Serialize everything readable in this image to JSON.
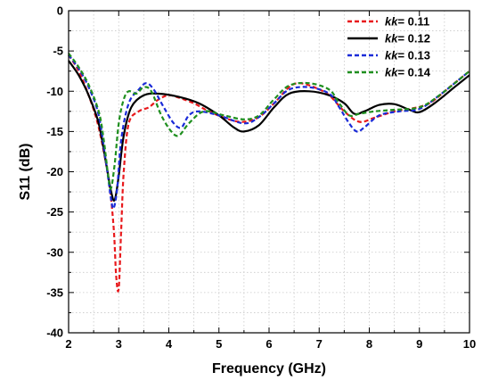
{
  "chart_data": {
    "type": "line",
    "xlabel": "Frequency (GHz)",
    "ylabel": "S11 (dB)",
    "xlim": [
      2,
      10
    ],
    "ylim": [
      -40,
      0
    ],
    "xticks": [
      "2",
      "3",
      "4",
      "5",
      "6",
      "7",
      "8",
      "9",
      "10"
    ],
    "yticks": [
      "0",
      "-5",
      "-10",
      "-15",
      "-20",
      "-25",
      "-30",
      "-35",
      "-40"
    ],
    "grid": true,
    "legend": "top-right",
    "legend_prefix": "kk",
    "series": [
      {
        "name": "= 0.11",
        "color": "#e8191c",
        "dash": "dashed",
        "points": [
          [
            2.0,
            -5.5
          ],
          [
            2.2,
            -7.5
          ],
          [
            2.4,
            -10.5
          ],
          [
            2.6,
            -14.5
          ],
          [
            2.8,
            -21
          ],
          [
            2.9,
            -27
          ],
          [
            2.95,
            -33
          ],
          [
            3.0,
            -34.5
          ],
          [
            3.05,
            -27
          ],
          [
            3.1,
            -20
          ],
          [
            3.2,
            -14
          ],
          [
            3.4,
            -12.5
          ],
          [
            3.6,
            -12.0
          ],
          [
            3.8,
            -11.0
          ],
          [
            4.0,
            -10.5
          ],
          [
            4.2,
            -10.8
          ],
          [
            4.5,
            -11.5
          ],
          [
            4.8,
            -12.5
          ],
          [
            5.2,
            -13.5
          ],
          [
            5.5,
            -13.8
          ],
          [
            5.8,
            -13.2
          ],
          [
            6.1,
            -11.5
          ],
          [
            6.4,
            -9.5
          ],
          [
            6.6,
            -9.0
          ],
          [
            6.9,
            -9.5
          ],
          [
            7.2,
            -10.5
          ],
          [
            7.5,
            -12.5
          ],
          [
            7.8,
            -13.8
          ],
          [
            8.1,
            -13.3
          ],
          [
            8.5,
            -12.5
          ],
          [
            8.8,
            -12.2
          ],
          [
            9.2,
            -11.5
          ],
          [
            9.6,
            -9.5
          ],
          [
            10.0,
            -7.5
          ]
        ]
      },
      {
        "name": "= 0.12",
        "color": "#000000",
        "dash": "solid",
        "points": [
          [
            2.0,
            -6.2
          ],
          [
            2.2,
            -8.0
          ],
          [
            2.4,
            -10.5
          ],
          [
            2.6,
            -14.0
          ],
          [
            2.75,
            -19.0
          ],
          [
            2.85,
            -22.5
          ],
          [
            2.92,
            -23.5
          ],
          [
            3.0,
            -20.5
          ],
          [
            3.1,
            -15.5
          ],
          [
            3.25,
            -12.0
          ],
          [
            3.5,
            -10.5
          ],
          [
            3.8,
            -10.3
          ],
          [
            4.2,
            -10.7
          ],
          [
            4.6,
            -11.5
          ],
          [
            5.0,
            -13.0
          ],
          [
            5.3,
            -14.5
          ],
          [
            5.5,
            -15.0
          ],
          [
            5.8,
            -14.2
          ],
          [
            6.1,
            -12.0
          ],
          [
            6.4,
            -10.3
          ],
          [
            6.8,
            -10.0
          ],
          [
            7.2,
            -10.5
          ],
          [
            7.5,
            -11.5
          ],
          [
            7.7,
            -12.8
          ],
          [
            7.9,
            -12.5
          ],
          [
            8.2,
            -11.7
          ],
          [
            8.5,
            -11.6
          ],
          [
            8.8,
            -12.3
          ],
          [
            9.0,
            -12.6
          ],
          [
            9.3,
            -11.5
          ],
          [
            9.7,
            -9.5
          ],
          [
            10.0,
            -8.0
          ]
        ]
      },
      {
        "name": "= 0.13",
        "color": "#1a2bd8",
        "dash": "dashed",
        "points": [
          [
            2.0,
            -5.5
          ],
          [
            2.2,
            -7.2
          ],
          [
            2.4,
            -9.5
          ],
          [
            2.6,
            -13.0
          ],
          [
            2.75,
            -19.0
          ],
          [
            2.85,
            -23.5
          ],
          [
            2.9,
            -24.5
          ],
          [
            2.97,
            -22.0
          ],
          [
            3.05,
            -16.0
          ],
          [
            3.2,
            -11.5
          ],
          [
            3.4,
            -9.8
          ],
          [
            3.55,
            -9.0
          ],
          [
            3.7,
            -9.8
          ],
          [
            3.9,
            -12.0
          ],
          [
            4.1,
            -14.0
          ],
          [
            4.25,
            -14.5
          ],
          [
            4.4,
            -13.0
          ],
          [
            4.6,
            -12.5
          ],
          [
            5.0,
            -13.0
          ],
          [
            5.5,
            -14.0
          ],
          [
            5.8,
            -13.2
          ],
          [
            6.1,
            -11.5
          ],
          [
            6.4,
            -9.8
          ],
          [
            6.8,
            -9.5
          ],
          [
            7.2,
            -10.3
          ],
          [
            7.4,
            -12.0
          ],
          [
            7.6,
            -14.0
          ],
          [
            7.75,
            -15.0
          ],
          [
            7.9,
            -14.5
          ],
          [
            8.2,
            -13.0
          ],
          [
            8.6,
            -12.5
          ],
          [
            9.0,
            -12.2
          ],
          [
            9.4,
            -10.5
          ],
          [
            10.0,
            -7.5
          ]
        ]
      },
      {
        "name": "= 0.14",
        "color": "#1f8f1f",
        "dash": "dashed",
        "points": [
          [
            2.0,
            -5.3
          ],
          [
            2.2,
            -7.0
          ],
          [
            2.4,
            -9.2
          ],
          [
            2.6,
            -12.5
          ],
          [
            2.7,
            -16.0
          ],
          [
            2.8,
            -21.0
          ],
          [
            2.85,
            -22.0
          ],
          [
            2.92,
            -19.0
          ],
          [
            3.0,
            -14.0
          ],
          [
            3.1,
            -11.0
          ],
          [
            3.2,
            -10.0
          ],
          [
            3.35,
            -10.3
          ],
          [
            3.5,
            -9.5
          ],
          [
            3.65,
            -10.0
          ],
          [
            3.85,
            -13.0
          ],
          [
            4.05,
            -15.0
          ],
          [
            4.2,
            -15.5
          ],
          [
            4.4,
            -14.0
          ],
          [
            4.7,
            -12.5
          ],
          [
            5.1,
            -13.0
          ],
          [
            5.5,
            -13.5
          ],
          [
            5.8,
            -13.0
          ],
          [
            6.1,
            -11.0
          ],
          [
            6.4,
            -9.3
          ],
          [
            6.8,
            -9.0
          ],
          [
            7.2,
            -9.8
          ],
          [
            7.4,
            -11.5
          ],
          [
            7.6,
            -13.0
          ],
          [
            7.8,
            -12.8
          ],
          [
            8.1,
            -12.5
          ],
          [
            8.5,
            -12.3
          ],
          [
            9.0,
            -12.0
          ],
          [
            9.4,
            -10.5
          ],
          [
            10.0,
            -7.5
          ]
        ]
      }
    ]
  }
}
